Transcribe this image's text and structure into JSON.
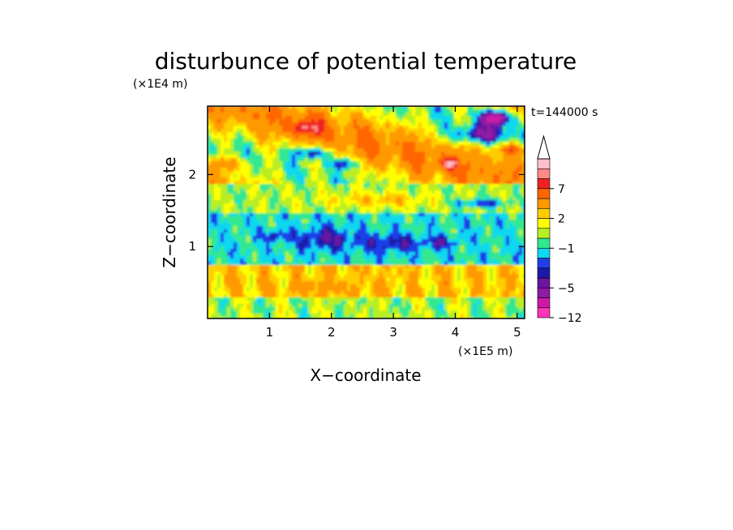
{
  "chart_data": {
    "type": "heatmap",
    "title": "disturbunce of potential temperature",
    "xlabel": "X−coordinate",
    "ylabel": "Z−coordinate",
    "x_unit": "(×1E5 m)",
    "y_unit": "(×1E4 m)",
    "annotation": "t=144000 s",
    "xlim": [
      0,
      5.12
    ],
    "ylim": [
      0,
      2.95
    ],
    "x_ticks": [
      {
        "v": 1,
        "label": "1"
      },
      {
        "v": 2,
        "label": "2"
      },
      {
        "v": 3,
        "label": "3"
      },
      {
        "v": 4,
        "label": "4"
      },
      {
        "v": 5,
        "label": "5"
      }
    ],
    "y_ticks": [
      {
        "v": 1,
        "label": "1"
      },
      {
        "v": 2,
        "label": "2"
      }
    ],
    "colorbar": {
      "levels": [
        -12,
        -9,
        -7,
        -5,
        -4,
        -3,
        -2,
        -1,
        0,
        1,
        2,
        3,
        5,
        7,
        9,
        11
      ],
      "colors": [
        "#ff33b8",
        "#cc1aa8",
        "#8e1aa5",
        "#6a14a0",
        "#1a1aa8",
        "#1f3fe8",
        "#10d8f0",
        "#30e890",
        "#b8ee20",
        "#ffff00",
        "#ffcc00",
        "#ff9900",
        "#ff6600",
        "#ee2222",
        "#ff8888",
        "#ffc0c8"
      ],
      "extend": "max",
      "tick_labels": [
        {
          "v": -12,
          "label": "−12"
        },
        {
          "v": -5,
          "label": "−5"
        },
        {
          "v": -1,
          "label": "−1"
        },
        {
          "v": 2,
          "label": "2"
        },
        {
          "v": 7,
          "label": "7"
        }
      ]
    },
    "field_structure": [
      {
        "z_range": [
          0.0,
          0.3
        ],
        "dominant": "green / yellow with light-blue streaks"
      },
      {
        "z_range": [
          0.3,
          0.75
        ],
        "dominant": "yellow / orange warm band"
      },
      {
        "z_range": [
          0.75,
          1.45
        ],
        "dominant": "cyan cold band with blue patches near x=1.5-3.5"
      },
      {
        "z_range": [
          1.45,
          1.85
        ],
        "dominant": "green"
      },
      {
        "z_range": [
          1.85,
          2.95
        ],
        "dominant": "alternating orange / yellow and blue bands, purple core near x=4.6, z=2.75"
      }
    ]
  }
}
